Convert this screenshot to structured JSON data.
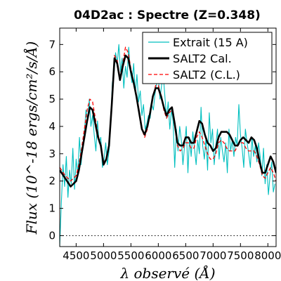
{
  "chart_data": {
    "type": "line",
    "title": "04D2ac : Spectre (Z=0.348)",
    "xlabel": "λ observé (Å)",
    "ylabel": "Flux (10^-18 ergs/cm²/s/Å)",
    "xlim": [
      4200,
      8150
    ],
    "ylim": [
      -0.4,
      7.6
    ],
    "xticks": [
      4500,
      5000,
      5500,
      6000,
      6500,
      7000,
      7500,
      8000
    ],
    "yticks": [
      0,
      1,
      2,
      3,
      4,
      5,
      6,
      7
    ],
    "legend_position": "top-right",
    "zero_line": true,
    "series": [
      {
        "name": "Extrait (15 A)",
        "color": "#00bfbf",
        "style": "solid-thin",
        "x": [
          4200,
          4230,
          4260,
          4290,
          4320,
          4350,
          4380,
          4410,
          4440,
          4470,
          4500,
          4530,
          4560,
          4590,
          4620,
          4650,
          4680,
          4710,
          4740,
          4770,
          4800,
          4830,
          4860,
          4890,
          4920,
          4950,
          4980,
          5010,
          5040,
          5070,
          5100,
          5130,
          5160,
          5190,
          5220,
          5250,
          5280,
          5310,
          5340,
          5370,
          5400,
          5430,
          5460,
          5490,
          5520,
          5550,
          5580,
          5610,
          5640,
          5670,
          5700,
          5730,
          5760,
          5790,
          5820,
          5850,
          5880,
          5910,
          5940,
          5970,
          6000,
          6030,
          6060,
          6090,
          6120,
          6150,
          6180,
          6210,
          6240,
          6270,
          6300,
          6330,
          6360,
          6390,
          6420,
          6450,
          6480,
          6510,
          6540,
          6570,
          6600,
          6630,
          6660,
          6690,
          6720,
          6750,
          6780,
          6810,
          6840,
          6870,
          6900,
          6930,
          6960,
          6990,
          7020,
          7050,
          7080,
          7110,
          7140,
          7170,
          7200,
          7230,
          7260,
          7290,
          7320,
          7350,
          7380,
          7410,
          7440,
          7470,
          7500,
          7530,
          7560,
          7590,
          7620,
          7650,
          7680,
          7710,
          7740,
          7770,
          7800,
          7830,
          7860,
          7890,
          7920,
          7950,
          7980,
          8010,
          8040,
          8070,
          8100,
          8130
        ],
        "y": [
          -0.4,
          1.2,
          2.6,
          1.8,
          2.9,
          1.4,
          2.4,
          1.9,
          3.2,
          1.7,
          2.8,
          2.2,
          3.6,
          2.6,
          3.3,
          3.8,
          4.6,
          4.2,
          5.0,
          4.0,
          4.4,
          3.7,
          3.1,
          4.2,
          3.4,
          3.6,
          2.5,
          2.8,
          3.4,
          2.6,
          3.1,
          4.1,
          5.6,
          5.9,
          6.7,
          6.3,
          7.0,
          6.0,
          6.5,
          5.4,
          6.2,
          5.8,
          6.9,
          6.0,
          5.6,
          6.3,
          5.2,
          5.9,
          4.9,
          5.3,
          4.4,
          4.8,
          3.9,
          4.1,
          4.4,
          4.3,
          4.8,
          4.6,
          5.2,
          5.6,
          5.8,
          5.0,
          5.5,
          5.9,
          5.1,
          4.3,
          4.9,
          3.9,
          4.6,
          4.2,
          2.5,
          3.9,
          3.1,
          4.0,
          3.5,
          2.6,
          3.3,
          4.0,
          2.3,
          3.6,
          2.9,
          3.8,
          3.2,
          2.6,
          3.5,
          3.0,
          4.7,
          3.3,
          2.8,
          3.6,
          2.4,
          4.5,
          3.4,
          3.9,
          2.6,
          3.3,
          3.9,
          2.8,
          3.6,
          3.1,
          2.7,
          3.4,
          2.3,
          3.9,
          3.1,
          3.5,
          2.9,
          3.6,
          3.3,
          4.8,
          3.7,
          3.2,
          2.5,
          3.9,
          3.4,
          3.0,
          2.5,
          3.6,
          2.9,
          3.3,
          2.7,
          3.4,
          2.9,
          2.2,
          3.2,
          1.9,
          2.6,
          1.5,
          2.2,
          2.7,
          1.6,
          1.9
        ]
      },
      {
        "name": "SALT2 Cal.",
        "color": "#000000",
        "style": "solid-thick",
        "x": [
          4200,
          4300,
          4400,
          4500,
          4550,
          4600,
          4650,
          4700,
          4750,
          4800,
          4850,
          4900,
          4950,
          5000,
          5050,
          5100,
          5150,
          5200,
          5250,
          5300,
          5350,
          5400,
          5450,
          5500,
          5550,
          5600,
          5650,
          5700,
          5750,
          5800,
          5850,
          5900,
          5950,
          6000,
          6050,
          6100,
          6150,
          6200,
          6250,
          6300,
          6350,
          6400,
          6450,
          6500,
          6550,
          6600,
          6650,
          6700,
          6750,
          6800,
          6850,
          6900,
          6950,
          7000,
          7050,
          7100,
          7150,
          7200,
          7250,
          7300,
          7350,
          7400,
          7450,
          7500,
          7550,
          7600,
          7650,
          7700,
          7750,
          7800,
          7850,
          7900,
          7950,
          8000,
          8050,
          8100,
          8150
        ],
        "y": [
          2.4,
          2.1,
          1.8,
          2.0,
          2.4,
          3.0,
          3.6,
          4.2,
          4.7,
          4.6,
          4.1,
          3.6,
          3.3,
          2.6,
          2.8,
          3.3,
          4.8,
          6.5,
          6.3,
          5.7,
          6.2,
          6.6,
          6.5,
          6.0,
          5.6,
          5.1,
          4.5,
          3.9,
          3.7,
          4.0,
          4.5,
          5.1,
          5.4,
          5.4,
          5.1,
          4.7,
          4.4,
          4.6,
          4.7,
          4.1,
          3.4,
          3.3,
          3.3,
          3.6,
          3.6,
          3.4,
          3.4,
          3.8,
          4.2,
          4.1,
          3.7,
          3.4,
          3.3,
          3.1,
          3.2,
          3.6,
          3.8,
          3.8,
          3.8,
          3.7,
          3.5,
          3.3,
          3.3,
          3.5,
          3.6,
          3.5,
          3.4,
          3.6,
          3.5,
          3.2,
          2.7,
          2.3,
          2.3,
          2.6,
          2.9,
          2.7,
          2.3
        ]
      },
      {
        "name": "SALT2 (C.L.)",
        "color": "#ff0000",
        "style": "dashed",
        "x": [
          4200,
          4300,
          4400,
          4500,
          4550,
          4600,
          4650,
          4700,
          4750,
          4800,
          4850,
          4900,
          4950,
          5000,
          5050,
          5100,
          5150,
          5200,
          5250,
          5300,
          5350,
          5400,
          5450,
          5500,
          5550,
          5600,
          5650,
          5700,
          5750,
          5800,
          5850,
          5900,
          5950,
          6000,
          6050,
          6100,
          6150,
          6200,
          6250,
          6300,
          6350,
          6400,
          6450,
          6500,
          6550,
          6600,
          6650,
          6700,
          6750,
          6800,
          6850,
          6900,
          6950,
          7000,
          7050,
          7100,
          7150,
          7200,
          7250,
          7300,
          7350,
          7400,
          7450,
          7500,
          7550,
          7600,
          7650,
          7700,
          7750,
          7800,
          7850,
          7900,
          7950,
          8000,
          8050,
          8100,
          8150
        ],
        "y": [
          2.5,
          2.2,
          2.0,
          2.2,
          2.6,
          3.2,
          3.9,
          4.6,
          5.0,
          4.9,
          4.3,
          3.7,
          3.3,
          2.7,
          2.8,
          3.3,
          4.9,
          6.6,
          6.4,
          5.8,
          6.3,
          6.9,
          6.7,
          6.1,
          5.6,
          5.1,
          4.5,
          3.9,
          3.6,
          3.9,
          4.5,
          5.1,
          5.5,
          5.5,
          5.1,
          4.6,
          4.3,
          4.5,
          4.6,
          4.0,
          3.3,
          3.1,
          3.2,
          3.4,
          3.4,
          3.2,
          3.2,
          3.6,
          3.8,
          3.6,
          3.3,
          3.0,
          2.8,
          2.8,
          3.0,
          3.4,
          3.5,
          3.4,
          3.2,
          3.1,
          3.1,
          3.1,
          3.3,
          3.4,
          3.4,
          3.2,
          3.1,
          3.1,
          3.1,
          2.9,
          2.6,
          2.2,
          2.1,
          2.3,
          2.5,
          2.3,
          2.0
        ]
      }
    ]
  }
}
